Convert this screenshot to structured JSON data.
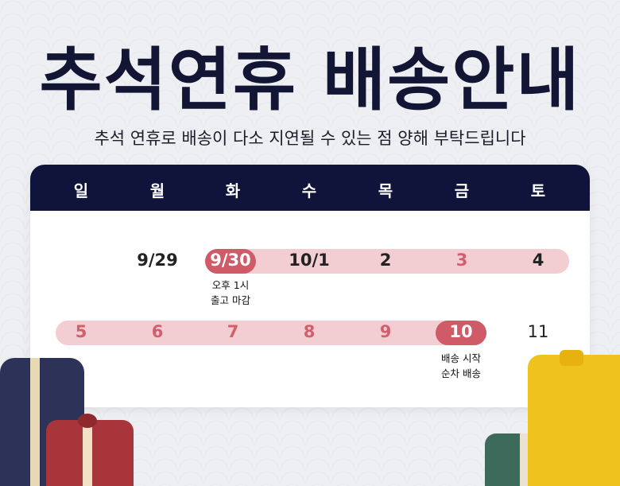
{
  "title": "추석연휴 배송안내",
  "subtitle": "추석 연휴로 배송이 다소 지연될 수 있는 점 양해 부탁드립니다",
  "weekdays": [
    "일",
    "월",
    "화",
    "수",
    "목",
    "금",
    "토"
  ],
  "week1": [
    "9/29",
    "9/30",
    "10/1",
    "2",
    "3",
    "4"
  ],
  "week2": [
    "5",
    "6",
    "7",
    "8",
    "9",
    "10",
    "11"
  ],
  "notes": {
    "cutoff_line1": "오후 1시",
    "cutoff_line2": "출고 마감",
    "start_line1": "배송 시작",
    "start_line2": "순차 배송"
  },
  "colors": {
    "navy": "#10143a",
    "holiday_bar": "#f2cdd2",
    "highlight": "#cf5a68"
  }
}
